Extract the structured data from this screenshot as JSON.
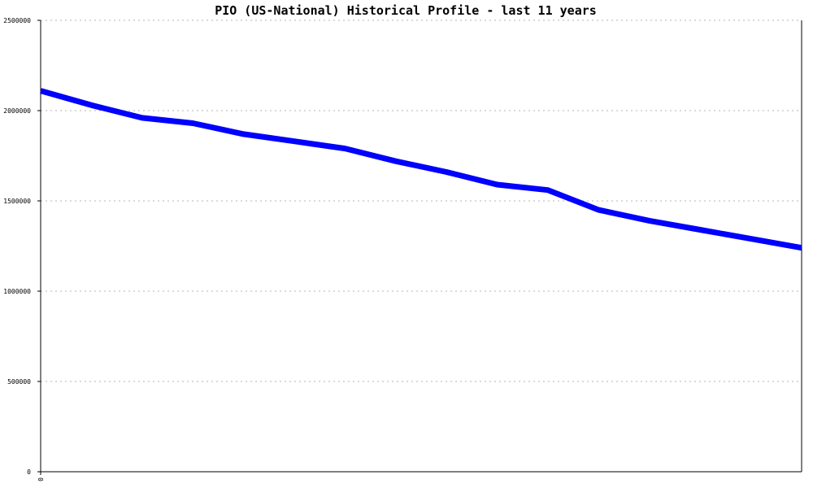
{
  "chart_data": {
    "type": "line",
    "title": "PIO (US-National) Historical Profile - last 11 years",
    "xlabel": "",
    "ylabel": "",
    "x_tick_labels": [
      "0"
    ],
    "y_tick_labels": [
      "2500000",
      "2000000",
      "1500000",
      "1000000",
      "500000",
      "0"
    ],
    "ylim": [
      0,
      2500000
    ],
    "grid": true,
    "series": [
      {
        "color": "#0000ff",
        "values": [
          2110000,
          2030000,
          1960000,
          1930000,
          1870000,
          1830000,
          1790000,
          1720000,
          1660000,
          1590000,
          1560000,
          1450000,
          1390000,
          1340000,
          1290000,
          1240000
        ]
      }
    ]
  }
}
